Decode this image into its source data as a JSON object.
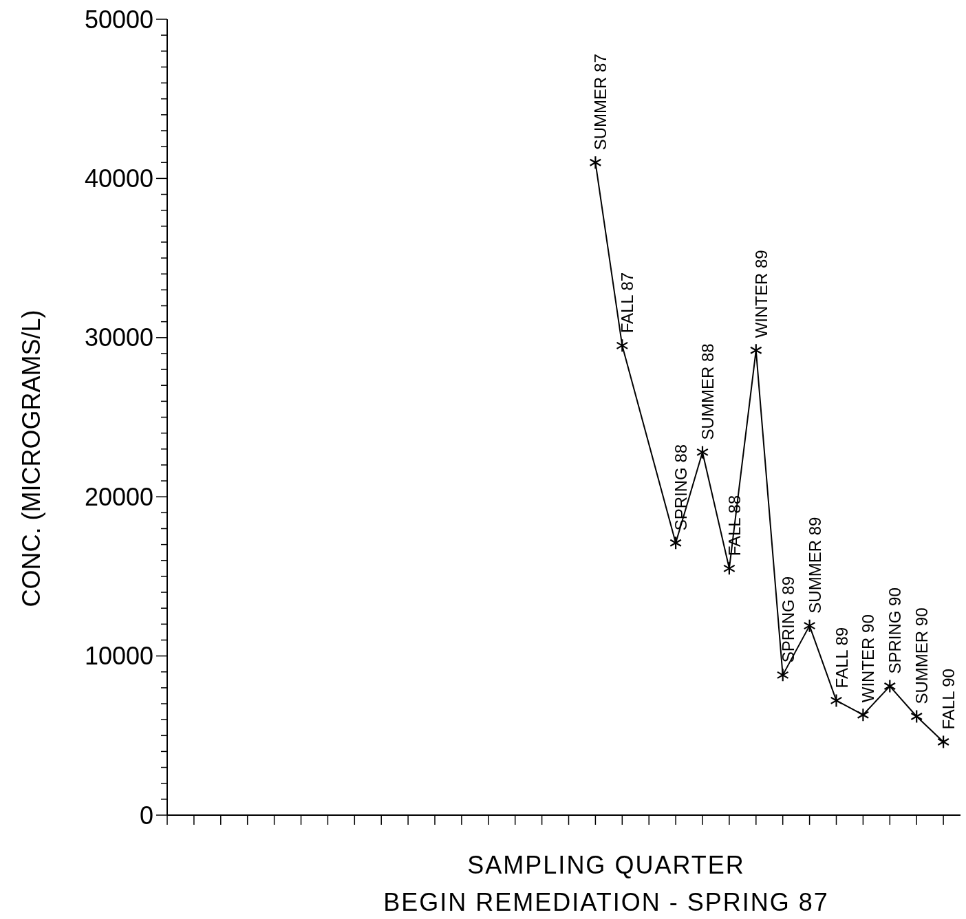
{
  "chart_data": {
    "type": "line",
    "xlabel": "SAMPLING QUARTER",
    "ylabel": "CONC. (MICROGRAMS/L)",
    "categories": [
      null,
      null,
      null,
      null,
      null,
      null,
      null,
      null,
      null,
      null,
      null,
      null,
      null,
      null,
      null,
      null,
      null,
      null,
      null,
      null,
      null,
      null,
      null,
      null,
      null,
      null,
      null,
      null,
      null,
      null
    ],
    "series": [
      {
        "color": "#000000",
        "values": [
          null,
          null,
          null,
          null,
          null,
          null,
          null,
          null,
          null,
          null,
          null,
          null,
          null,
          null,
          null,
          null,
          41000,
          29500,
          null,
          17100,
          22800,
          15500,
          29200,
          8800,
          11900,
          7200,
          6300,
          8100,
          6200,
          4600
        ]
      }
    ],
    "ylim": [
      0,
      50000
    ],
    "yticks": [
      0,
      {
        "value": 1000,
        "label": null
      },
      {
        "value": 2000,
        "label": null
      },
      {
        "value": 3000,
        "label": null
      },
      {
        "value": 4000,
        "label": null
      },
      {
        "value": 5000,
        "label": null
      },
      {
        "value": 6000,
        "label": null
      },
      {
        "value": 7000,
        "label": null
      },
      {
        "value": 8000,
        "label": null
      },
      {
        "value": 9000,
        "label": null
      },
      10000,
      {
        "value": 11000,
        "label": null
      },
      {
        "value": 12000,
        "label": null
      },
      {
        "value": 13000,
        "label": null
      },
      {
        "value": 14000,
        "label": null
      },
      {
        "value": 15000,
        "label": null
      },
      {
        "value": 16000,
        "label": null
      },
      {
        "value": 17000,
        "label": null
      },
      {
        "value": 18000,
        "label": null
      },
      {
        "value": 19000,
        "label": null
      },
      20000,
      {
        "value": 21000,
        "label": null
      },
      {
        "value": 22000,
        "label": null
      },
      {
        "value": 23000,
        "label": null
      },
      {
        "value": 24000,
        "label": null
      },
      {
        "value": 25000,
        "label": null
      },
      {
        "value": 26000,
        "label": null
      },
      {
        "value": 27000,
        "label": null
      },
      {
        "value": 28000,
        "label": null
      },
      {
        "value": 29000,
        "label": null
      },
      30000,
      {
        "value": 31000,
        "label": null
      },
      {
        "value": 32000,
        "label": null
      },
      {
        "value": 33000,
        "label": null
      },
      {
        "value": 34000,
        "label": null
      },
      {
        "value": 35000,
        "label": null
      },
      {
        "value": 36000,
        "label": null
      },
      {
        "value": 37000,
        "label": null
      },
      {
        "value": 38000,
        "label": null
      },
      {
        "value": 39000,
        "label": null
      },
      40000,
      {
        "value": 41000,
        "label": null
      },
      {
        "value": 42000,
        "label": null
      },
      {
        "value": 43000,
        "label": null
      },
      {
        "value": 44000,
        "label": null
      },
      {
        "value": 45000,
        "label": null
      },
      {
        "value": 46000,
        "label": null
      },
      {
        "value": 47000,
        "label": null
      },
      {
        "value": 48000,
        "label": null
      },
      {
        "value": 49000,
        "label": null
      },
      50000
    ],
    "grid": false,
    "marker": "cross",
    "line_style": "solid",
    "annotations": [
      {
        "text": "SUMMER 87",
        "y": 41000
      },
      {
        "text": "FALL 87",
        "y": 29500
      },
      {
        "text": "SPRING 88",
        "y": 17100
      },
      {
        "text": "SUMMER 88",
        "y": 22800
      },
      {
        "text": "FALL 88",
        "y": 15500
      },
      {
        "text": "WINTER 89",
        "y": 29200
      },
      {
        "text": "SPRING 89",
        "y": 8800
      },
      {
        "text": "SUMMER 89",
        "y": 11900
      },
      {
        "text": "FALL 89",
        "y": 7200
      },
      {
        "text": "WINTER 90",
        "y": 6300
      },
      {
        "text": "SPRING 90",
        "y": 8100
      },
      {
        "text": "SUMMER 90",
        "y": 6200
      },
      {
        "text": "FALL 90",
        "y": 4600
      },
      "BEGIN REMEDIATION - SPRING 87"
    ]
  }
}
